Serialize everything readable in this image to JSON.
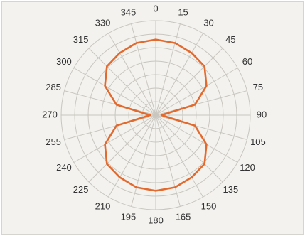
{
  "chart_data": {
    "type": "polar-line",
    "title": "",
    "angle_unit": "degrees",
    "angle_zero": "top",
    "angle_direction": "clockwise",
    "angle_ticks": [
      0,
      15,
      30,
      45,
      60,
      75,
      90,
      105,
      120,
      135,
      150,
      165,
      180,
      195,
      210,
      225,
      240,
      255,
      270,
      285,
      300,
      315,
      330,
      345
    ],
    "angle_tick_labels": [
      "0",
      "15",
      "30",
      "45",
      "60",
      "75",
      "90",
      "105",
      "120",
      "135",
      "150",
      "165",
      "180",
      "195",
      "210",
      "225",
      "240",
      "255",
      "270",
      "285",
      "300",
      "315",
      "330",
      "345"
    ],
    "radial_range": [
      0,
      1
    ],
    "radial_rings": 7,
    "radial_tick_labels_shown": false,
    "grid": true,
    "legend": "none",
    "colors": {
      "series": "#e36a2e",
      "grid": "#c9c6bf",
      "background": "#f3f2ee"
    },
    "series": [
      {
        "theta": [
          0,
          15,
          30,
          45,
          60,
          75,
          90,
          105,
          120,
          135,
          150,
          165,
          180,
          195,
          210,
          225,
          240,
          255,
          270,
          285,
          300,
          315,
          330,
          345,
          360
        ],
        "r": [
          0.8,
          0.79,
          0.76,
          0.73,
          0.62,
          0.43,
          0.06,
          0.43,
          0.62,
          0.73,
          0.76,
          0.79,
          0.8,
          0.79,
          0.76,
          0.73,
          0.62,
          0.43,
          0.06,
          0.43,
          0.62,
          0.73,
          0.76,
          0.79,
          0.8
        ]
      }
    ]
  }
}
